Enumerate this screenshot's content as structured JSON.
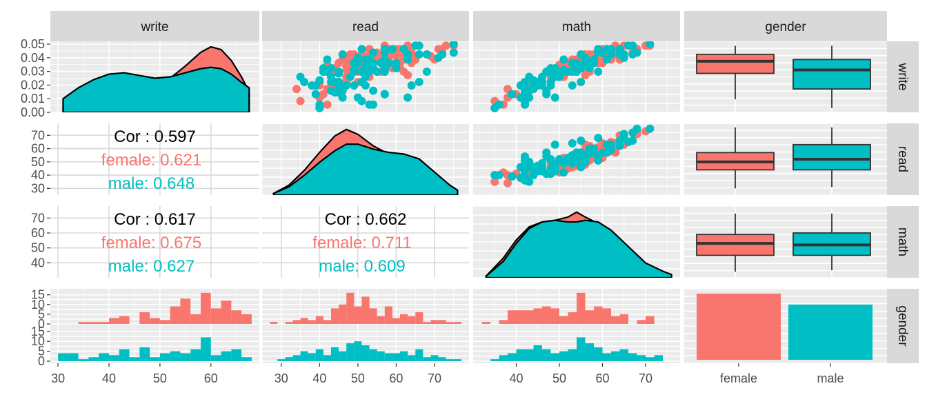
{
  "colors": {
    "female": "#F8766D",
    "male": "#00BFC4",
    "panel_bg": "#EBEBEB",
    "strip_bg": "#D9D9D9",
    "grid": "#FFFFFF",
    "outline": "#000000",
    "cor_total": "#000000"
  },
  "chart_data": {
    "type": "scatter",
    "variables": [
      "write",
      "read",
      "math",
      "gender"
    ],
    "groups": [
      "female",
      "male"
    ],
    "axis_ticks": {
      "write": [
        "30",
        "40",
        "50",
        "60"
      ],
      "read": [
        "30",
        "40",
        "50",
        "60",
        "70"
      ],
      "math": [
        "40",
        "50",
        "60",
        "70"
      ],
      "gender_x": [
        "female",
        "male"
      ],
      "density_y": [
        "0.00",
        "0.01",
        "0.02",
        "0.03",
        "0.04",
        "0.05"
      ],
      "read_y": [
        "30",
        "40",
        "50",
        "60",
        "70"
      ],
      "math_y": [
        "40",
        "50",
        "60",
        "70"
      ],
      "hist_y": [
        "0",
        "5",
        "10",
        "15"
      ]
    },
    "correlations": [
      {
        "row": "read",
        "col": "write",
        "total": "Cor : 0.597",
        "female": "female: 0.621",
        "male": "male: 0.648"
      },
      {
        "row": "math",
        "col": "write",
        "total": "Cor : 0.617",
        "female": "female: 0.675",
        "male": "male: 0.627"
      },
      {
        "row": "math",
        "col": "read",
        "total": "Cor : 0.662",
        "female": "female: 0.711",
        "male": "male: 0.609"
      }
    ],
    "boxplots": {
      "write": {
        "female": {
          "min": 36,
          "q1": 51,
          "median": 58,
          "q3": 62,
          "max": 67
        },
        "male": {
          "min": 31,
          "q1": 42,
          "median": 53,
          "q3": 59,
          "max": 67
        }
      },
      "read": {
        "female": {
          "min": 30,
          "q1": 44,
          "median": 50,
          "q3": 57,
          "max": 76
        },
        "male": {
          "min": 31,
          "q1": 44,
          "median": 52,
          "q3": 63,
          "max": 76
        }
      },
      "math": {
        "female": {
          "min": 34,
          "q1": 45,
          "median": 53,
          "q3": 59,
          "max": 73
        },
        "male": {
          "min": 35,
          "q1": 45,
          "median": 52,
          "q3": 60,
          "max": 73
        }
      }
    },
    "gender_counts": {
      "female": 109,
      "male": 91
    },
    "density": {
      "write": {
        "x": [
          31,
          34,
          37,
          40,
          43,
          46,
          49,
          52,
          55,
          58,
          60,
          62,
          64,
          66,
          67.5
        ],
        "female": [
          0.005,
          0.012,
          0.018,
          0.022,
          0.023,
          0.022,
          0.021,
          0.025,
          0.034,
          0.044,
          0.048,
          0.046,
          0.038,
          0.026,
          0.015
        ],
        "male": [
          0.01,
          0.018,
          0.024,
          0.028,
          0.029,
          0.027,
          0.025,
          0.026,
          0.029,
          0.032,
          0.033,
          0.032,
          0.028,
          0.022,
          0.018
        ]
      },
      "read": {
        "x": [
          28,
          32,
          36,
          40,
          44,
          47,
          50,
          54,
          58,
          62,
          66,
          70,
          74,
          76
        ],
        "female": [
          0.001,
          0.006,
          0.015,
          0.026,
          0.036,
          0.04,
          0.037,
          0.03,
          0.025,
          0.022,
          0.017,
          0.009,
          0.004,
          0.003
        ],
        "male": [
          0.001,
          0.005,
          0.012,
          0.02,
          0.027,
          0.031,
          0.031,
          0.028,
          0.026,
          0.025,
          0.022,
          0.014,
          0.006,
          0.003
        ]
      },
      "math": {
        "x": [
          33,
          37,
          40,
          43,
          46,
          49,
          52,
          54,
          56,
          59,
          62,
          66,
          70,
          74,
          76
        ],
        "female": [
          0.001,
          0.012,
          0.023,
          0.031,
          0.034,
          0.035,
          0.037,
          0.04,
          0.037,
          0.033,
          0.027,
          0.017,
          0.008,
          0.003,
          0.002
        ],
        "male": [
          0.001,
          0.01,
          0.021,
          0.03,
          0.034,
          0.035,
          0.034,
          0.034,
          0.035,
          0.034,
          0.029,
          0.019,
          0.009,
          0.004,
          0.002
        ]
      }
    },
    "histograms": {
      "write": {
        "bins": [
          31,
          33,
          35,
          37,
          39,
          41,
          43,
          45,
          47,
          49,
          51,
          53,
          55,
          57,
          59,
          61,
          63,
          65,
          67
        ],
        "female": [
          0,
          0,
          1,
          1,
          1,
          3,
          4,
          0,
          6,
          3,
          2,
          9,
          13,
          5,
          16,
          8,
          12,
          7,
          5
        ],
        "male": [
          4,
          4,
          1,
          2,
          4,
          3,
          6,
          2,
          7,
          2,
          4,
          5,
          4,
          6,
          12,
          3,
          5,
          6,
          2
        ]
      },
      "read": {
        "bins": [
          28,
          30,
          32,
          34,
          36,
          38,
          40,
          42,
          44,
          46,
          48,
          50,
          52,
          54,
          56,
          58,
          60,
          62,
          64,
          66,
          68,
          70,
          72,
          74,
          76
        ],
        "female": [
          1,
          0,
          1,
          2,
          3,
          2,
          4,
          2,
          8,
          10,
          16,
          9,
          14,
          8,
          4,
          9,
          3,
          5,
          4,
          6,
          1,
          2,
          2,
          1,
          1
        ],
        "male": [
          0,
          1,
          2,
          3,
          5,
          4,
          6,
          3,
          7,
          5,
          9,
          10,
          8,
          6,
          5,
          4,
          4,
          5,
          3,
          6,
          2,
          3,
          2,
          1,
          1
        ]
      },
      "math": {
        "bins": [
          33,
          35,
          37,
          39,
          41,
          43,
          45,
          47,
          49,
          51,
          53,
          55,
          57,
          59,
          61,
          63,
          65,
          67,
          69,
          71,
          73,
          75
        ],
        "female": [
          1,
          0,
          2,
          7,
          7,
          7,
          8,
          9,
          8,
          4,
          6,
          16,
          7,
          9,
          8,
          4,
          5,
          0,
          2,
          4,
          0,
          0
        ],
        "male": [
          0,
          1,
          3,
          4,
          6,
          6,
          8,
          6,
          4,
          5,
          6,
          12,
          9,
          7,
          4,
          5,
          6,
          4,
          3,
          2,
          3,
          0
        ]
      }
    },
    "scatter": [
      [
        50,
        63,
        "female"
      ],
      [
        63,
        57,
        "female"
      ],
      [
        60,
        52,
        "female"
      ],
      [
        59,
        58,
        "female"
      ],
      [
        65,
        53,
        "female"
      ],
      [
        54,
        49,
        "female"
      ],
      [
        52,
        62,
        "female"
      ],
      [
        62,
        49,
        "female"
      ],
      [
        54,
        57,
        "female"
      ],
      [
        65,
        60,
        "female"
      ],
      [
        55,
        50,
        "female"
      ],
      [
        67,
        63,
        "female"
      ],
      [
        52,
        56,
        "female"
      ],
      [
        65,
        61,
        "female"
      ],
      [
        61,
        53,
        "female"
      ],
      [
        54,
        51,
        "female"
      ],
      [
        63,
        55,
        "female"
      ],
      [
        57,
        64,
        "female"
      ],
      [
        59,
        47,
        "female"
      ],
      [
        45,
        46,
        "female"
      ],
      [
        67,
        73,
        "female"
      ],
      [
        62,
        68,
        "female"
      ],
      [
        61,
        60,
        "female"
      ],
      [
        59,
        55,
        "female"
      ],
      [
        55,
        47,
        "female"
      ],
      [
        41,
        43,
        "female"
      ],
      [
        57,
        52,
        "female"
      ],
      [
        65,
        58,
        "female"
      ],
      [
        52,
        49,
        "female"
      ],
      [
        62,
        48,
        "female"
      ],
      [
        44,
        38,
        "female"
      ],
      [
        57,
        53,
        "female"
      ],
      [
        54,
        44,
        "female"
      ],
      [
        46,
        47,
        "female"
      ],
      [
        56,
        42,
        "female"
      ],
      [
        62,
        55,
        "female"
      ],
      [
        54,
        61,
        "female"
      ],
      [
        62,
        57,
        "female"
      ],
      [
        57,
        45,
        "female"
      ],
      [
        61,
        62,
        "female"
      ],
      [
        62,
        58,
        "female"
      ],
      [
        42,
        34,
        "female"
      ],
      [
        59,
        57,
        "female"
      ],
      [
        57,
        51,
        "female"
      ],
      [
        49,
        47,
        "female"
      ],
      [
        63,
        63,
        "female"
      ],
      [
        55,
        51,
        "female"
      ],
      [
        62,
        60,
        "female"
      ],
      [
        54,
        52,
        "female"
      ],
      [
        52,
        44,
        "female"
      ],
      [
        39,
        41,
        "female"
      ],
      [
        44,
        44,
        "female"
      ],
      [
        59,
        50,
        "female"
      ],
      [
        60,
        55,
        "female"
      ],
      [
        65,
        57,
        "female"
      ],
      [
        41,
        46,
        "female"
      ],
      [
        54,
        53,
        "female"
      ],
      [
        52,
        50,
        "female"
      ],
      [
        49,
        53,
        "female"
      ],
      [
        63,
        72,
        "female"
      ],
      [
        46,
        40,
        "female"
      ],
      [
        59,
        62,
        "female"
      ],
      [
        62,
        66,
        "female"
      ],
      [
        65,
        71,
        "female"
      ],
      [
        59,
        48,
        "female"
      ],
      [
        61,
        56,
        "female"
      ],
      [
        53,
        47,
        "female"
      ],
      [
        55,
        51,
        "female"
      ],
      [
        67,
        75,
        "female"
      ],
      [
        59,
        58,
        "female"
      ],
      [
        41,
        43,
        "female"
      ],
      [
        54,
        49,
        "female"
      ],
      [
        59,
        56,
        "female"
      ],
      [
        55,
        51,
        "female"
      ],
      [
        63,
        59,
        "female"
      ],
      [
        59,
        46,
        "female"
      ],
      [
        57,
        49,
        "female"
      ],
      [
        61,
        55,
        "female"
      ],
      [
        44,
        45,
        "female"
      ],
      [
        63,
        64,
        "female"
      ],
      [
        59,
        65,
        "female"
      ],
      [
        54,
        52,
        "female"
      ],
      [
        67,
        57,
        "female"
      ],
      [
        62,
        54,
        "female"
      ],
      [
        42,
        42,
        "female"
      ],
      [
        62,
        53,
        "female"
      ],
      [
        37,
        40,
        "female"
      ],
      [
        62,
        58,
        "female"
      ],
      [
        59,
        63,
        "female"
      ],
      [
        54,
        59,
        "female"
      ],
      [
        52,
        51,
        "female"
      ],
      [
        59,
        57,
        "female"
      ],
      [
        55,
        48,
        "female"
      ],
      [
        49,
        52,
        "female"
      ],
      [
        57,
        53,
        "female"
      ],
      [
        35,
        35,
        "female"
      ],
      [
        46,
        50,
        "female"
      ],
      [
        59,
        70,
        "female"
      ],
      [
        65,
        72,
        "female"
      ],
      [
        57,
        61,
        "female"
      ],
      [
        44,
        40,
        "female"
      ],
      [
        59,
        54,
        "female"
      ],
      [
        62,
        51,
        "female"
      ],
      [
        54,
        57,
        "female"
      ],
      [
        61,
        69,
        "female"
      ],
      [
        62,
        64,
        "female"
      ],
      [
        65,
        63,
        "female"
      ],
      [
        52,
        55,
        "female"
      ],
      [
        33,
        42,
        "female"
      ],
      [
        52,
        41,
        "male"
      ],
      [
        59,
        53,
        "male"
      ],
      [
        33,
        54,
        "male"
      ],
      [
        44,
        47,
        "male"
      ],
      [
        52,
        57,
        "male"
      ],
      [
        52,
        51,
        "male"
      ],
      [
        59,
        42,
        "male"
      ],
      [
        46,
        45,
        "male"
      ],
      [
        57,
        54,
        "male"
      ],
      [
        55,
        52,
        "male"
      ],
      [
        46,
        51,
        "male"
      ],
      [
        65,
        51,
        "male"
      ],
      [
        60,
        71,
        "male"
      ],
      [
        63,
        57,
        "male"
      ],
      [
        57,
        50,
        "male"
      ],
      [
        49,
        43,
        "male"
      ],
      [
        52,
        51,
        "male"
      ],
      [
        57,
        60,
        "male"
      ],
      [
        65,
        62,
        "male"
      ],
      [
        39,
        57,
        "male"
      ],
      [
        49,
        35,
        "male"
      ],
      [
        63,
        75,
        "male"
      ],
      [
        40,
        45,
        "male"
      ],
      [
        52,
        57,
        "male"
      ],
      [
        44,
        45,
        "male"
      ],
      [
        37,
        46,
        "male"
      ],
      [
        46,
        66,
        "male"
      ],
      [
        65,
        57,
        "male"
      ],
      [
        57,
        49,
        "male"
      ],
      [
        53,
        49,
        "male"
      ],
      [
        39,
        57,
        "male"
      ],
      [
        44,
        64,
        "male"
      ],
      [
        37,
        63,
        "male"
      ],
      [
        54,
        57,
        "male"
      ],
      [
        37,
        50,
        "male"
      ],
      [
        57,
        58,
        "male"
      ],
      [
        68,
        75,
        "male"
      ],
      [
        52,
        68,
        "male"
      ],
      [
        46,
        44,
        "male"
      ],
      [
        33,
        40,
        "male"
      ],
      [
        52,
        41,
        "male"
      ],
      [
        52,
        45,
        "male"
      ],
      [
        46,
        43,
        "male"
      ],
      [
        62,
        63,
        "male"
      ],
      [
        31,
        40,
        "male"
      ],
      [
        57,
        60,
        "male"
      ],
      [
        41,
        54,
        "male"
      ],
      [
        52,
        55,
        "male"
      ],
      [
        44,
        52,
        "male"
      ],
      [
        54,
        43,
        "male"
      ],
      [
        62,
        66,
        "male"
      ],
      [
        40,
        44,
        "male"
      ],
      [
        52,
        49,
        "male"
      ],
      [
        46,
        36,
        "male"
      ],
      [
        57,
        56,
        "male"
      ],
      [
        65,
        59,
        "male"
      ],
      [
        31,
        40,
        "male"
      ],
      [
        39,
        39,
        "male"
      ],
      [
        59,
        57,
        "male"
      ],
      [
        62,
        46,
        "male"
      ],
      [
        41,
        46,
        "male"
      ],
      [
        52,
        42,
        "male"
      ],
      [
        44,
        38,
        "male"
      ],
      [
        54,
        57,
        "male"
      ],
      [
        59,
        63,
        "male"
      ],
      [
        52,
        53,
        "male"
      ],
      [
        57,
        50,
        "male"
      ],
      [
        62,
        72,
        "male"
      ],
      [
        33,
        53,
        "male"
      ],
      [
        49,
        48,
        "male"
      ],
      [
        44,
        39,
        "male"
      ],
      [
        42,
        46,
        "male"
      ],
      [
        63,
        54,
        "male"
      ],
      [
        46,
        45,
        "male"
      ],
      [
        41,
        43,
        "male"
      ],
      [
        54,
        54,
        "male"
      ],
      [
        67,
        66,
        "male"
      ],
      [
        44,
        49,
        "male"
      ],
      [
        54,
        60,
        "male"
      ],
      [
        49,
        52,
        "male"
      ],
      [
        39,
        39,
        "male"
      ],
      [
        57,
        49,
        "male"
      ],
      [
        62,
        68,
        "male"
      ],
      [
        46,
        43,
        "male"
      ],
      [
        59,
        52,
        "male"
      ],
      [
        35,
        51,
        "male"
      ],
      [
        47,
        40,
        "male"
      ],
      [
        60,
        50,
        "male"
      ],
      [
        67,
        65,
        "male"
      ],
      [
        54,
        41,
        "male"
      ],
      [
        51,
        45,
        "male"
      ]
    ]
  }
}
